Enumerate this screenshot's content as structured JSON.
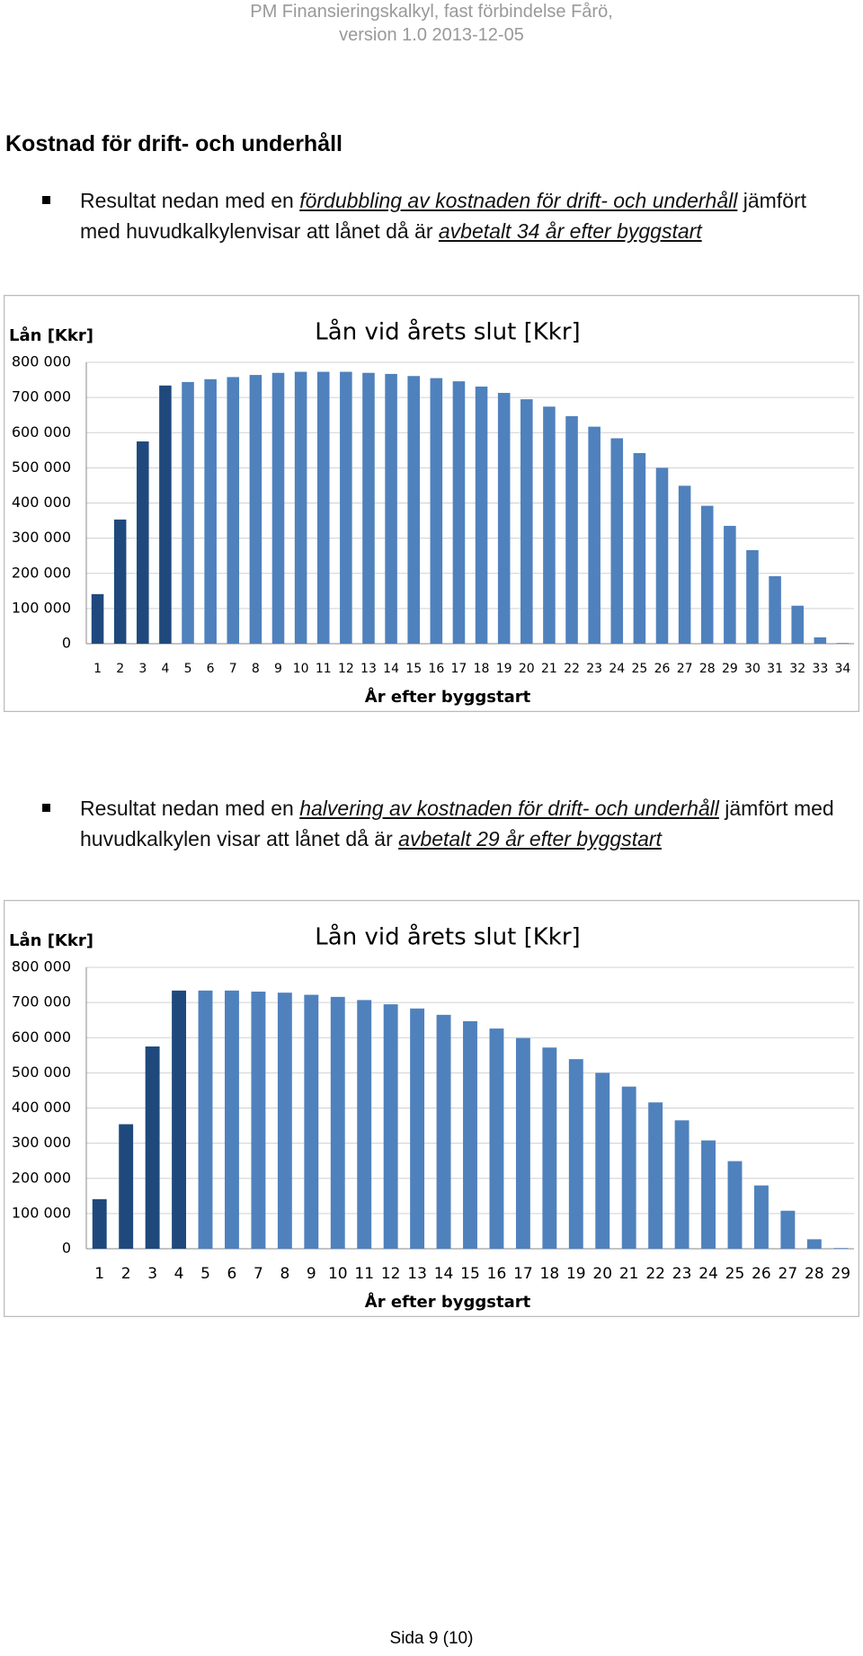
{
  "header": {
    "lines": [
      "PM Finansieringskalkyl, fast förbindelse Fårö,",
      "version 1.0 2013-12-05"
    ]
  },
  "heading": "Kostnad för drift- och underhåll",
  "bullets": [
    {
      "parts": [
        "Resultat nedan med en ",
        "fördubbling av kostnaden för drift- och underhåll",
        " jämfört med huvudkalkylenvisar att lånet då är ",
        "avbetalt 34 år efter byggstart"
      ]
    },
    {
      "parts": [
        "Resultat nedan med en ",
        "halvering av kostnaden för drift- och underhåll",
        " jämfört med huvudkalkylen visar att lånet då är ",
        "avbetalt 29 år efter byggstart"
      ]
    }
  ],
  "chart_data": [
    {
      "type": "bar",
      "title": "Lån vid årets slut [Kkr]",
      "y_label": "Lån [Kkr]",
      "x_label": "År efter byggstart",
      "categories": [
        "1",
        "2",
        "3",
        "4",
        "5",
        "6",
        "7",
        "8",
        "9",
        "10",
        "11",
        "12",
        "13",
        "14",
        "15",
        "16",
        "17",
        "18",
        "19",
        "20",
        "21",
        "22",
        "23",
        "24",
        "25",
        "26",
        "27",
        "28",
        "29",
        "30",
        "31",
        "32",
        "33",
        "34"
      ],
      "values": [
        141000,
        353000,
        575000,
        734000,
        744000,
        752000,
        758000,
        764000,
        770000,
        773000,
        773000,
        773000,
        770000,
        767000,
        761000,
        755000,
        746000,
        731000,
        713000,
        695000,
        674000,
        647000,
        617000,
        584000,
        542000,
        500000,
        449000,
        392000,
        335000,
        266000,
        192000,
        108000,
        18000,
        2000
      ],
      "colors": [
        "#1f497d",
        "#1f497d",
        "#1f497d",
        "#1f497d",
        "#4f81bd",
        "#4f81bd",
        "#4f81bd",
        "#4f81bd",
        "#4f81bd",
        "#4f81bd",
        "#4f81bd",
        "#4f81bd",
        "#4f81bd",
        "#4f81bd",
        "#4f81bd",
        "#4f81bd",
        "#4f81bd",
        "#4f81bd",
        "#4f81bd",
        "#4f81bd",
        "#4f81bd",
        "#4f81bd",
        "#4f81bd",
        "#4f81bd",
        "#4f81bd",
        "#4f81bd",
        "#4f81bd",
        "#4f81bd",
        "#4f81bd",
        "#4f81bd",
        "#4f81bd",
        "#4f81bd",
        "#4f81bd",
        "#4f81bd"
      ],
      "ylim": [
        0,
        800000
      ],
      "yticks": [
        0,
        {
          "value": 100000,
          "label": "100 000"
        },
        {
          "value": 200000,
          "label": "200 000"
        },
        {
          "value": 300000,
          "label": "300 000"
        },
        {
          "value": 400000,
          "label": "400 000"
        },
        {
          "value": 500000,
          "label": "500 000"
        },
        {
          "value": 600000,
          "label": "600 000"
        },
        {
          "value": 700000,
          "label": "700 000"
        },
        {
          "value": 800000,
          "label": "800 000"
        }
      ],
      "grid": true
    },
    {
      "type": "bar",
      "title": "Lån vid årets slut [Kkr]",
      "y_label": "Lån [Kkr]",
      "x_label": "År efter byggstart",
      "categories": [
        "1",
        "2",
        "3",
        "4",
        "5",
        "6",
        "7",
        "8",
        "9",
        "10",
        "11",
        "12",
        "13",
        "14",
        "15",
        "16",
        "17",
        "18",
        "19",
        "20",
        "21",
        "22",
        "23",
        "24",
        "25",
        "26",
        "27",
        "28",
        "29"
      ],
      "values": [
        141000,
        354000,
        575000,
        734000,
        734000,
        734000,
        731000,
        728000,
        722000,
        716000,
        707000,
        695000,
        683000,
        665000,
        647000,
        626000,
        599000,
        572000,
        539000,
        500000,
        461000,
        416000,
        365000,
        308000,
        249000,
        180000,
        108000,
        27000,
        2000
      ],
      "colors": [
        "#1f497d",
        "#1f497d",
        "#1f497d",
        "#1f497d",
        "#4f81bd",
        "#4f81bd",
        "#4f81bd",
        "#4f81bd",
        "#4f81bd",
        "#4f81bd",
        "#4f81bd",
        "#4f81bd",
        "#4f81bd",
        "#4f81bd",
        "#4f81bd",
        "#4f81bd",
        "#4f81bd",
        "#4f81bd",
        "#4f81bd",
        "#4f81bd",
        "#4f81bd",
        "#4f81bd",
        "#4f81bd",
        "#4f81bd",
        "#4f81bd",
        "#4f81bd",
        "#4f81bd",
        "#4f81bd",
        "#4f81bd"
      ],
      "ylim": [
        0,
        800000
      ],
      "yticks": [
        0,
        {
          "value": 100000,
          "label": "100 000"
        },
        {
          "value": 200000,
          "label": "200 000"
        },
        {
          "value": 300000,
          "label": "300 000"
        },
        {
          "value": 400000,
          "label": "400 000"
        },
        {
          "value": 500000,
          "label": "500 000"
        },
        {
          "value": 600000,
          "label": "600 000"
        },
        {
          "value": 700000,
          "label": "700 000"
        },
        {
          "value": 800000,
          "label": "800 000"
        }
      ],
      "grid": true
    }
  ],
  "footer": "Sida 9 (10)"
}
